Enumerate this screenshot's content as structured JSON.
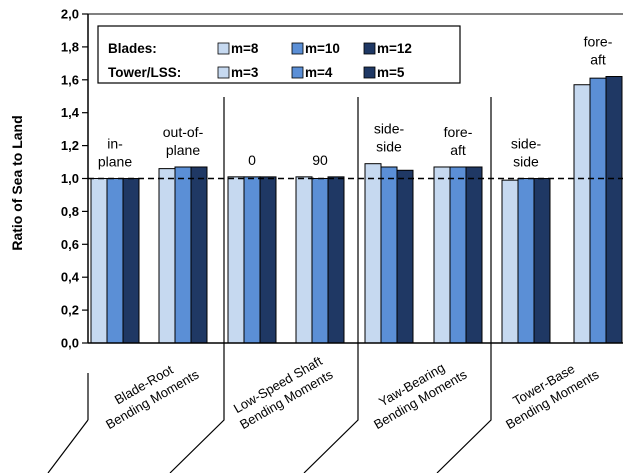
{
  "chart_data": {
    "type": "bar",
    "ylabel": "Ratio of Sea to Land",
    "ylim": [
      0,
      2
    ],
    "yticks": [
      "0,0",
      "0,2",
      "0,4",
      "0,6",
      "0,8",
      "1,0",
      "1,2",
      "1,4",
      "1,6",
      "1,8",
      "2,0"
    ],
    "reference_line": 1.0,
    "grid": false,
    "legend": {
      "position": "top-left",
      "rows": [
        {
          "label": "Blades:",
          "items": [
            "m=8",
            "m=10",
            "m=12"
          ]
        },
        {
          "label": "Tower/LSS:",
          "items": [
            "m=3",
            "m=4",
            "m=5"
          ]
        }
      ]
    },
    "series_colors": [
      "#c6d9f0",
      "#5b8fd6",
      "#1f3864"
    ],
    "groups": [
      {
        "label_lines": [
          "in-",
          "plane"
        ],
        "values": [
          1.0,
          1.0,
          1.0
        ]
      },
      {
        "label_lines": [
          "out-of-",
          "plane"
        ],
        "values": [
          1.06,
          1.07,
          1.07
        ]
      },
      {
        "label_lines": [
          "0"
        ],
        "values": [
          1.01,
          1.01,
          1.01
        ]
      },
      {
        "label_lines": [
          "90"
        ],
        "values": [
          1.01,
          1.0,
          1.01
        ]
      },
      {
        "label_lines": [
          "side-",
          "side"
        ],
        "values": [
          1.09,
          1.07,
          1.05
        ]
      },
      {
        "label_lines": [
          "fore-",
          "aft"
        ],
        "values": [
          1.07,
          1.07,
          1.07
        ]
      },
      {
        "label_lines": [
          "side-",
          "side"
        ],
        "values": [
          0.99,
          1.0,
          1.0
        ]
      },
      {
        "label_lines": [
          "fore-",
          "aft"
        ],
        "values": [
          1.57,
          1.61,
          1.62
        ]
      }
    ],
    "categories": [
      {
        "lines": [
          "Blade-Root",
          "Bending Moments"
        ]
      },
      {
        "lines": [
          "Low-Speed Shaft",
          "Bending Moments"
        ]
      },
      {
        "lines": [
          "Yaw-Bearing",
          "Bending Moments"
        ]
      },
      {
        "lines": [
          "Tower-Base",
          "Bending Moments"
        ]
      }
    ]
  }
}
